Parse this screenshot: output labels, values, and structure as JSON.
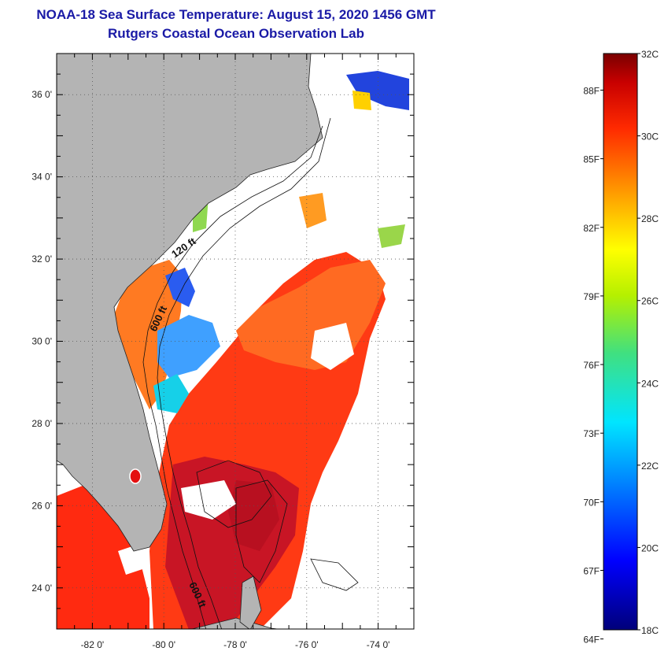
{
  "title": "NOAA-18 Sea Surface Temperature:  August 15, 2020 1456 GMT",
  "subtitle": "Rutgers Coastal Ocean Observation Lab",
  "map": {
    "lat_range": [
      23,
      37
    ],
    "lon_range": [
      -83,
      -73
    ],
    "lat_labels": [
      "24 0'",
      "26 0'",
      "28 0'",
      "30 0'",
      "32 0'",
      "34 0'",
      "36 0'"
    ],
    "lat_values": [
      24,
      26,
      28,
      30,
      32,
      34,
      36
    ],
    "lon_labels": [
      "-82 0'",
      "-80 0'",
      "-78 0'",
      "-76 0'",
      "-74 0'"
    ],
    "lon_values": [
      -82,
      -80,
      -78,
      -76,
      -74
    ],
    "contour_labels": [
      "120 ft",
      "600 ft",
      "600 ft"
    ],
    "grid": "dotted",
    "colors": {
      "land": "#b4b4b4",
      "ocean_warm": "#ff3a14",
      "ocean_hot": "#cc1020",
      "ocean_orange": "#ff7a22",
      "clouds": "#ffffff"
    }
  },
  "colorbar": {
    "celsius_labels": [
      "32C",
      "30C",
      "28C",
      "26C",
      "24C",
      "22C",
      "20C",
      "18C"
    ],
    "celsius_values": [
      32,
      30,
      28,
      26,
      24,
      22,
      20,
      18
    ],
    "fahrenheit_labels": [
      "88F",
      "85F",
      "82F",
      "79F",
      "76F",
      "73F",
      "70F",
      "67F",
      "64F"
    ],
    "fahrenheit_values": [
      88,
      85,
      82,
      79,
      76,
      73,
      70,
      67,
      64
    ],
    "range_c": [
      18,
      32
    ]
  }
}
